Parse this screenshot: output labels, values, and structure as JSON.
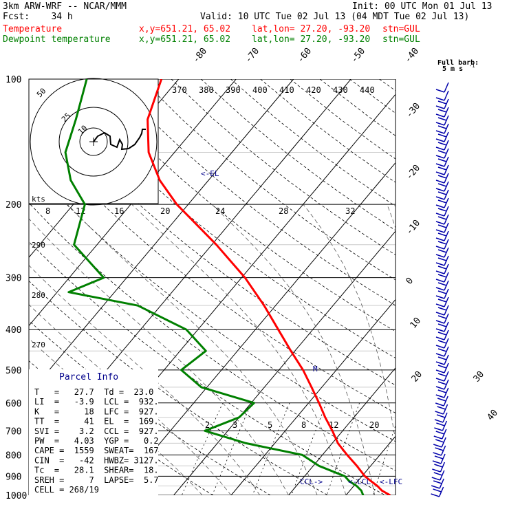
{
  "header": {
    "model": "3km ARW-WRF -- NCAR/MMM",
    "init": "Init: 00 UTC Mon 01 Jul 13",
    "fcst": "Fcst:    34 h",
    "valid": "Valid: 10 UTC Tue 02 Jul 13 (04 MDT Tue 02 Jul 13)",
    "temp_label": "Temperature",
    "dew_label": "Dewpoint temperature",
    "xy": "x,y=651.21, 65.02",
    "latlon": "lat,lon= 27.20, -93.20",
    "stn": "stn=GUL",
    "barb_title": "Full barb:",
    "barb_unit": "5 m s"
  },
  "colors": {
    "temperature": "#ff0000",
    "dewpoint": "#008000",
    "barbs": "#0000aa",
    "grid": "#000000"
  },
  "chart_data": {
    "type": "line",
    "title": "",
    "pressure_levels": [
      "100",
      "200",
      "300",
      "400",
      "500",
      "600",
      "700",
      "800",
      "900",
      "1000"
    ],
    "isotherm_labels": [
      "-80",
      "-70",
      "-60",
      "-50",
      "-40",
      "-30",
      "-20",
      "-10",
      "0",
      "10",
      "20",
      "30",
      "40"
    ],
    "mixing_ratio_labels": [
      "2",
      "3",
      "5",
      "8",
      "12",
      "20"
    ],
    "dry_adiabat_labels": [
      "370",
      "380",
      "390",
      "400",
      "410",
      "420",
      "430",
      "440"
    ],
    "theta_e_labels": [
      "290",
      "280",
      "270"
    ],
    "series": [
      {
        "name": "Temperature",
        "points": [
          [
            1000,
            27.7
          ],
          [
            975,
            25.6
          ],
          [
            950,
            24.1
          ],
          [
            925,
            22.3
          ],
          [
            900,
            20.5
          ],
          [
            850,
            17.6
          ],
          [
            800,
            14.3
          ],
          [
            750,
            11.0
          ],
          [
            700,
            8.2
          ],
          [
            650,
            5.0
          ],
          [
            600,
            1.8
          ],
          [
            550,
            -1.8
          ],
          [
            500,
            -5.8
          ],
          [
            450,
            -10.7
          ],
          [
            400,
            -16.0
          ],
          [
            350,
            -22.0
          ],
          [
            300,
            -29.4
          ],
          [
            250,
            -39.2
          ],
          [
            200,
            -52.0
          ],
          [
            175,
            -58.5
          ],
          [
            150,
            -64.5
          ],
          [
            125,
            -69.5
          ],
          [
            100,
            -73.0
          ]
        ]
      },
      {
        "name": "Dewpoint temperature",
        "points": [
          [
            1000,
            23.0
          ],
          [
            975,
            22.0
          ],
          [
            950,
            20.5
          ],
          [
            925,
            18.5
          ],
          [
            900,
            17.0
          ],
          [
            850,
            11.0
          ],
          [
            800,
            6.5
          ],
          [
            750,
            -5.0
          ],
          [
            700,
            -14.0
          ],
          [
            650,
            -10.0
          ],
          [
            600,
            -9.5
          ],
          [
            550,
            -21.0
          ],
          [
            500,
            -27.0
          ],
          [
            450,
            -25.5
          ],
          [
            400,
            -32.0
          ],
          [
            350,
            -44.0
          ],
          [
            325,
            -58.0
          ],
          [
            300,
            -54.0
          ],
          [
            250,
            -64.0
          ],
          [
            200,
            -68.0
          ],
          [
            175,
            -74.0
          ],
          [
            150,
            -79.0
          ],
          [
            125,
            -82.0
          ],
          [
            100,
            -86.0
          ]
        ]
      }
    ],
    "annotations": {
      "el": "<-EL",
      "m": "M",
      "ccl": "CCL->",
      "lcl": "<-LCL",
      "lfc": "<-LFC"
    }
  },
  "hodograph": {
    "units": "kts",
    "ring_labels": [
      "10",
      "25",
      "50"
    ],
    "speed_labels": [
      "8",
      "12",
      "16",
      "20",
      "24",
      "28",
      "32"
    ]
  },
  "parcel": {
    "title": "Parcel Info",
    "rows": [
      "T   =   27.7  Td =  23.0",
      "LI  =   -3.9  LCL =  932.",
      "K   =     18  LFC =  927.",
      "TT  =     41  EL  =  169.",
      "SVI =    3.2  CCL =  927.",
      "PW  =   4.03  YGP =   0.2",
      "CAPE =  1559  SWEAT=  167",
      "CIN  =   -42  HWBZ= 3127.",
      "Tc  =   28.1  SHEAR=  18.",
      "SREH =     7  LAPSE=  5.7",
      "CELL = 268/19"
    ]
  }
}
